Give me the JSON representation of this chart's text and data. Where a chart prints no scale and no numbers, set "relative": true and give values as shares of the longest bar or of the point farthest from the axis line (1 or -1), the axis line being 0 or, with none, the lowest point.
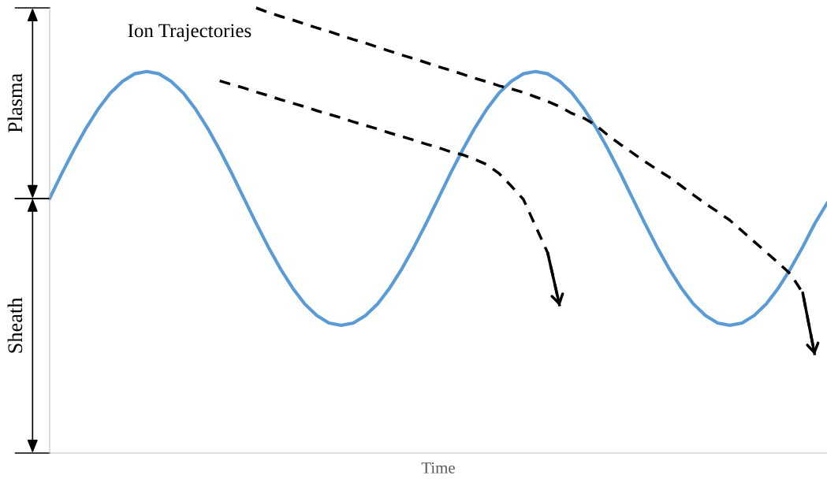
{
  "chart_data": {
    "type": "line",
    "relative": true,
    "xlabel": "Time",
    "annotations": [
      "Ion Trajectories",
      "Plasma",
      "Sheath"
    ],
    "categories": [
      null,
      null,
      null,
      null,
      null,
      null,
      null,
      null,
      null,
      null,
      null,
      null,
      null,
      null,
      null,
      null,
      null,
      null,
      null,
      null,
      null,
      null,
      null,
      null,
      null,
      null,
      null,
      null,
      null,
      null,
      null,
      null,
      null,
      null,
      null,
      null,
      null,
      null,
      null,
      null,
      null,
      null,
      null,
      null,
      null,
      null,
      null,
      null,
      null,
      null,
      null,
      null,
      null,
      null,
      null,
      null,
      null,
      null,
      null,
      null,
      null,
      null,
      null,
      null,
      null
    ],
    "series": [
      {
        "color": "#5b9bd5",
        "line_style": "solid",
        "values": [
          0.572,
          0.628,
          0.681,
          0.73,
          0.773,
          0.809,
          0.835,
          0.852,
          0.857,
          0.852,
          0.835,
          0.809,
          0.773,
          0.73,
          0.681,
          0.628,
          0.572,
          0.516,
          0.463,
          0.414,
          0.371,
          0.335,
          0.309,
          0.292,
          0.287,
          0.292,
          0.309,
          0.335,
          0.371,
          0.414,
          0.463,
          0.516,
          0.572,
          0.628,
          0.681,
          0.73,
          0.773,
          0.809,
          0.835,
          0.852,
          0.857,
          0.852,
          0.835,
          0.809,
          0.773,
          0.73,
          0.681,
          0.628,
          0.572,
          0.516,
          0.463,
          0.414,
          0.371,
          0.335,
          0.309,
          0.292,
          0.287,
          0.292,
          0.309,
          0.335,
          0.371,
          0.414,
          0.463,
          0.516,
          0.561
        ]
      },
      {
        "color": "#000000",
        "line_style": "dashed",
        "values": [
          null,
          null,
          null,
          null,
          null,
          null,
          null,
          null,
          null,
          null,
          null,
          null,
          null,
          null,
          0.836,
          0.828,
          0.82,
          0.811,
          0.803,
          0.794,
          0.786,
          0.778,
          0.769,
          0.761,
          0.753,
          0.744,
          0.736,
          0.728,
          0.719,
          0.711,
          0.703,
          0.694,
          0.686,
          0.677,
          0.67,
          0.66,
          0.648,
          0.628,
          0.6,
          0.57,
          0.51,
          0.45,
          0.33,
          null,
          null,
          null,
          null,
          null,
          null,
          null,
          null,
          null,
          null,
          null,
          null,
          null,
          null,
          null,
          null,
          null,
          null,
          null,
          null,
          null,
          null
        ]
      },
      {
        "color": "#000000",
        "line_style": "dashed",
        "values": [
          null,
          null,
          null,
          null,
          null,
          null,
          null,
          null,
          null,
          null,
          null,
          null,
          null,
          null,
          null,
          null,
          null,
          1,
          0.99,
          0.981,
          0.973,
          0.964,
          0.955,
          0.947,
          0.938,
          0.929,
          0.921,
          0.912,
          0.903,
          0.894,
          0.886,
          0.877,
          0.868,
          0.86,
          0.851,
          0.842,
          0.834,
          0.825,
          0.818,
          0.81,
          0.8,
          0.79,
          0.778,
          0.763,
          0.752,
          0.736,
          0.713,
          0.693,
          0.674,
          0.655,
          0.637,
          0.62,
          0.6,
          0.58,
          0.56,
          0.542,
          0.523,
          0.499,
          0.475,
          0.451,
          0.427,
          0.402,
          0.36,
          0.22,
          null
        ]
      }
    ]
  }
}
